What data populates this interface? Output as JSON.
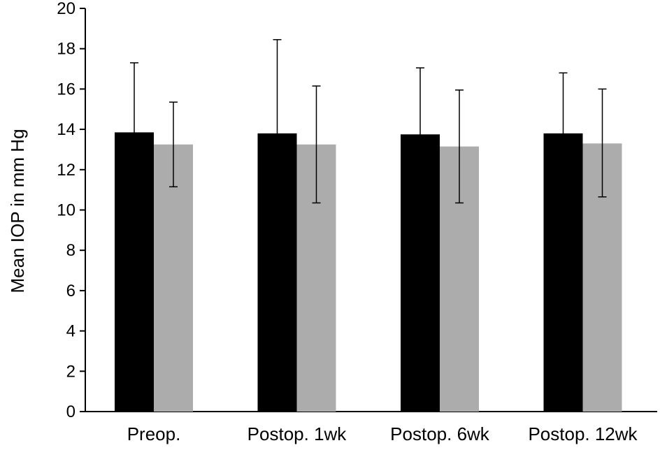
{
  "chart_data": {
    "type": "bar",
    "title": "",
    "xlabel": "",
    "ylabel": "Mean IOP in mm Hg",
    "ylim": [
      0,
      20
    ],
    "yticks": [
      0,
      2,
      4,
      6,
      8,
      10,
      12,
      14,
      16,
      18,
      20
    ],
    "categories": [
      "Preop.",
      "Postop. 1wk",
      "Postop. 6wk",
      "Postop. 12wk"
    ],
    "series": [
      {
        "color": "#000000",
        "values": [
          13.85,
          13.8,
          13.75,
          13.8
        ],
        "error_low": [
          10.4,
          9.2,
          10.45,
          10.75
        ],
        "error_high": [
          17.3,
          18.45,
          17.05,
          16.8
        ]
      },
      {
        "color": "#acacac",
        "values": [
          13.25,
          13.25,
          13.15,
          13.3
        ],
        "error_low": [
          11.15,
          10.35,
          10.35,
          10.65
        ],
        "error_high": [
          15.35,
          16.15,
          15.95,
          16.0
        ]
      }
    ],
    "grid": false,
    "legend": "none"
  }
}
